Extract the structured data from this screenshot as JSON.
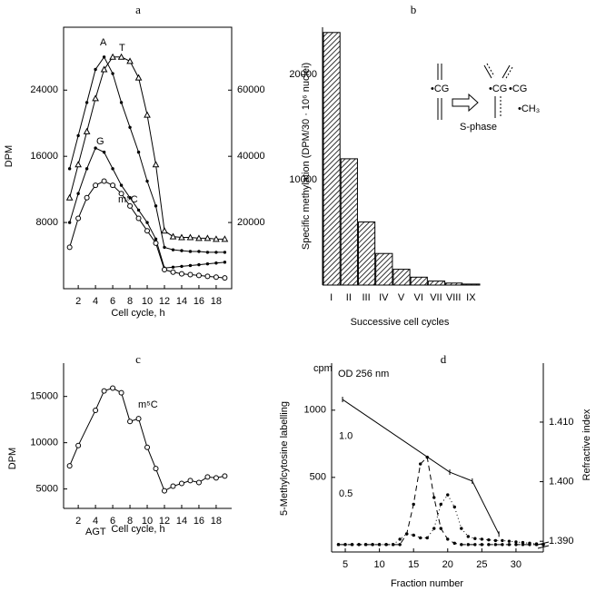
{
  "chart_data": [
    {
      "type": "line",
      "title": "a",
      "xlabel": "Cell cycle, h",
      "ylabel": "DPM",
      "x": [
        1,
        2,
        3,
        4,
        5,
        6,
        7,
        8,
        9,
        10,
        11,
        12,
        13,
        14,
        15,
        16,
        17,
        18,
        19
      ],
      "xlim": [
        0.3,
        19.8
      ],
      "xticks": [
        2,
        4,
        6,
        8,
        10,
        12,
        14,
        16,
        18
      ],
      "ylim": [
        0,
        31600
      ],
      "yticks": [
        8000,
        16000,
        24000
      ],
      "y2lim": [
        0,
        79000
      ],
      "y2ticks": [
        20000,
        40000,
        60000
      ],
      "annotations": [
        "A",
        "T",
        "G",
        "m⁵C"
      ],
      "series": [
        {
          "color": "#000",
          "marker": "dot",
          "values": [
            14500,
            18500,
            22500,
            26500,
            28000,
            26000,
            22500,
            19500,
            16500,
            13000,
            10000,
            5000,
            4700,
            4600,
            4500,
            4500,
            4400,
            4400,
            4400
          ]
        },
        {
          "color": "#000",
          "marker": "triangle",
          "values": [
            11000,
            15000,
            19000,
            23000,
            26500,
            28000,
            28000,
            27500,
            25500,
            21000,
            15000,
            7000,
            6300,
            6200,
            6200,
            6100,
            6100,
            6000,
            6000
          ]
        },
        {
          "color": "#000",
          "marker": "dot",
          "values": [
            8000,
            11500,
            14500,
            17000,
            16500,
            14500,
            12500,
            11000,
            9500,
            8000,
            6000,
            2500,
            2600,
            2700,
            2800,
            2900,
            3000,
            3100,
            3200
          ]
        },
        {
          "color": "#000",
          "marker": "circle",
          "values": [
            5000,
            8500,
            11000,
            12500,
            13000,
            12500,
            11500,
            10000,
            8500,
            7000,
            5500,
            2300,
            2000,
            1800,
            1700,
            1600,
            1500,
            1400,
            1300
          ]
        }
      ]
    },
    {
      "type": "bar",
      "title": "b",
      "xlabel": "Successive cell cycles",
      "ylabel": "Specific methylation (DPM/30 · 10⁶ nuclei)",
      "categories": [
        "I",
        "II",
        "III",
        "IV",
        "V",
        "VI",
        "VII",
        "VIII",
        "IX"
      ],
      "values": [
        24000,
        12000,
        6000,
        3000,
        1500,
        750,
        380,
        190,
        95
      ],
      "color": "#000",
      "pattern": "hatch",
      "ylim": [
        0,
        24500
      ],
      "yticks": [
        10000,
        20000
      ],
      "annotations": [
        "•CG",
        "•CG",
        "•CG",
        "S-phase",
        "•CH₃"
      ]
    },
    {
      "type": "line",
      "title": "c",
      "xlabel": "Cell cycle, h",
      "ylabel": "DPM",
      "x": [
        1,
        2,
        4,
        5,
        6,
        7,
        8,
        9,
        10,
        11,
        12,
        13,
        14,
        15,
        16,
        17,
        18,
        19
      ],
      "xlim": [
        0.3,
        19.8
      ],
      "xticks": [
        2,
        4,
        6,
        8,
        10,
        12,
        14,
        16,
        18
      ],
      "ylim": [
        2900,
        18600
      ],
      "yticks": [
        5000,
        10000,
        15000
      ],
      "annotations": [
        "m⁵C",
        "AGT"
      ],
      "series": [
        {
          "color": "#000",
          "marker": "circle",
          "values": [
            7500,
            9700,
            13500,
            15600,
            15900,
            15400,
            12300,
            12600,
            9500,
            7200,
            4800,
            5300,
            5600,
            5900,
            5700,
            6300,
            6200,
            6400
          ]
        }
      ]
    },
    {
      "type": "line",
      "title": "d",
      "xlabel": "Fraction number",
      "ylabel": "5-Methylcytosine labelling",
      "y2label": "Refractive index",
      "xlim": [
        3,
        34
      ],
      "xticks": [
        5,
        10,
        15,
        20,
        25,
        30
      ],
      "ylim": [
        -55,
        1350
      ],
      "yticks": [
        500,
        1000
      ],
      "y2lim": [
        1.3882,
        1.4199
      ],
      "y2ticks": [
        {
          "value": 1.39,
          "label": "1.390"
        },
        {
          "value": 1.4,
          "label": "1.400"
        },
        {
          "value": 1.41,
          "label": "1.410"
        }
      ],
      "y3lim": [
        0,
        1.63
      ],
      "y3ticks": [
        {
          "value": 0.5,
          "label": "0.5"
        },
        {
          "value": 1,
          "label": "1.0"
        }
      ],
      "annotations": [
        "cpm",
        "OD 256 nm"
      ],
      "series": [
        {
          "color": "#000",
          "marker": "dot",
          "dash": "dashed",
          "x": [
            4,
            5,
            6,
            7,
            8,
            9,
            10,
            11,
            12,
            13,
            14,
            15,
            16,
            17,
            18,
            19,
            20,
            21,
            22,
            23,
            24,
            25,
            26,
            27,
            28,
            29,
            30,
            31,
            32,
            33,
            34
          ],
          "values": [
            0,
            0,
            0,
            0,
            0,
            0,
            0,
            0,
            0,
            0,
            80,
            300,
            600,
            650,
            350,
            120,
            40,
            10,
            0,
            0,
            0,
            0,
            0,
            0,
            0,
            0,
            0,
            0,
            0,
            0,
            0
          ]
        },
        {
          "color": "#000",
          "marker": "dot",
          "dash": "dotted",
          "x": [
            4,
            5,
            6,
            7,
            8,
            9,
            10,
            11,
            12,
            13,
            14,
            15,
            16,
            17,
            18,
            19,
            20,
            21,
            22,
            23,
            24,
            25,
            26,
            27,
            28,
            29,
            30,
            31,
            32,
            33,
            34
          ],
          "values": [
            0,
            0,
            0,
            0,
            0,
            0,
            0,
            0,
            0,
            40,
            80,
            70,
            50,
            50,
            120,
            300,
            370,
            280,
            120,
            60,
            45,
            40,
            35,
            30,
            30,
            25,
            20,
            15,
            10,
            5,
            0
          ]
        },
        {
          "color": "#000",
          "marker": "tick",
          "axis": "y2",
          "x": [
            4.6,
            20.3,
            23.6,
            27.5
          ],
          "values": [
            1.4138,
            1.4016,
            1.4001,
            1.3912
          ]
        }
      ]
    }
  ]
}
